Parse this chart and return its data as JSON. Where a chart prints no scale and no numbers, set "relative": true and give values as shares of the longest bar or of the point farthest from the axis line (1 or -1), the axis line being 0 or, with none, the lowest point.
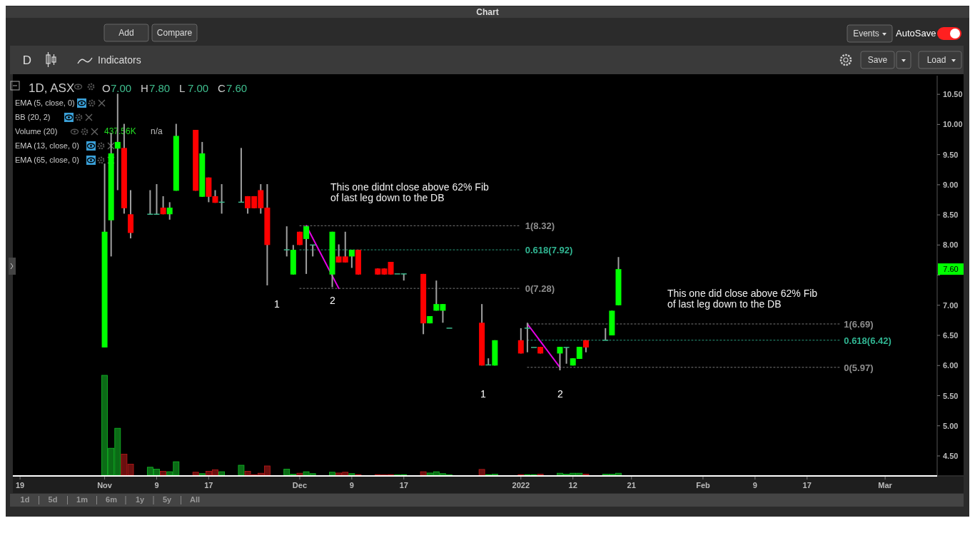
{
  "chart_data": [
    {
      "type": "candlestick",
      "title": "1D, ASX",
      "x": [
        "2021-11-01",
        "2021-11-02",
        "2021-11-03",
        "2021-11-04",
        "2021-11-05",
        "2021-11-08",
        "2021-11-09",
        "2021-11-10",
        "2021-11-11",
        "2021-11-12",
        "2021-11-15",
        "2021-11-16",
        "2021-11-17",
        "2021-11-18",
        "2021-11-19",
        "2021-11-22",
        "2021-11-23",
        "2021-11-24",
        "2021-11-25",
        "2021-11-26",
        "2021-11-29",
        "2021-11-30",
        "2021-12-01",
        "2021-12-02",
        "2021-12-03",
        "2021-12-06",
        "2021-12-07",
        "2021-12-08",
        "2021-12-09",
        "2021-12-10",
        "2021-12-13",
        "2021-12-14",
        "2021-12-15",
        "2021-12-16",
        "2021-12-17",
        "2021-12-20",
        "2021-12-21",
        "2021-12-22",
        "2021-12-23",
        "2021-12-24",
        "2021-12-29",
        "2021-12-30",
        "2021-12-31",
        "2022-01-04",
        "2022-01-05",
        "2022-01-06",
        "2022-01-07",
        "2022-01-10",
        "2022-01-11",
        "2022-01-12",
        "2022-01-13",
        "2022-01-14",
        "2022-01-17",
        "2022-01-18",
        "2022-01-19"
      ],
      "ohlc": [
        [
          6.3,
          9.35,
          6.3,
          8.22
        ],
        [
          8.41,
          9.86,
          7.81,
          9.52
        ],
        [
          9.6,
          10.51,
          8.91,
          9.71
        ],
        [
          9.61,
          10.01,
          8.52,
          8.61
        ],
        [
          8.51,
          8.91,
          8.11,
          8.2
        ],
        [
          8.51,
          8.91,
          8.51,
          8.51
        ],
        [
          8.51,
          9.01,
          8.51,
          8.51
        ],
        [
          8.62,
          8.81,
          8.51,
          8.51
        ],
        [
          8.51,
          8.71,
          8.42,
          8.62
        ],
        [
          8.9,
          10.01,
          8.9,
          9.81
        ],
        [
          9.91,
          9.91,
          8.9,
          8.9
        ],
        [
          8.8,
          9.71,
          8.8,
          9.52
        ],
        [
          9.12,
          9.12,
          8.71,
          8.8
        ],
        [
          8.81,
          8.91,
          8.7,
          8.7
        ],
        [
          8.71,
          9.01,
          8.52,
          8.71
        ],
        [
          8.71,
          9.61,
          8.71,
          8.71
        ],
        [
          8.81,
          8.81,
          8.52,
          8.61
        ],
        [
          8.81,
          8.81,
          8.61,
          8.61
        ],
        [
          8.91,
          9.01,
          8.52,
          8.61
        ],
        [
          8.62,
          9.01,
          7.33,
          8.0
        ],
        [
          7.92,
          8.31,
          7.81,
          7.92
        ],
        [
          7.51,
          8.0,
          7.51,
          7.92
        ],
        [
          8.22,
          8.22,
          8.0,
          8.0
        ],
        [
          8.1,
          8.32,
          7.52,
          8.31
        ],
        [
          8.0,
          8.0,
          7.81,
          8.0
        ],
        [
          7.51,
          8.22,
          7.3,
          8.22
        ],
        [
          7.81,
          8.01,
          7.71,
          7.71
        ],
        [
          7.81,
          8.22,
          7.71,
          7.71
        ],
        [
          7.81,
          7.92,
          7.62,
          7.92
        ],
        [
          7.92,
          7.92,
          7.51,
          7.51
        ],
        [
          7.61,
          7.61,
          7.51,
          7.51
        ],
        [
          7.61,
          7.61,
          7.51,
          7.51
        ],
        [
          7.72,
          7.72,
          7.51,
          7.51
        ],
        [
          7.52,
          7.52,
          7.52,
          7.52
        ],
        [
          7.52,
          7.52,
          7.41,
          7.52
        ],
        [
          7.52,
          7.52,
          6.52,
          6.7
        ],
        [
          6.7,
          6.82,
          6.7,
          6.82
        ],
        [
          6.91,
          7.41,
          6.91,
          7.02
        ],
        [
          6.91,
          7.02,
          6.71,
          7.02
        ],
        [
          6.62,
          6.62,
          6.62,
          6.62
        ],
        [
          6.71,
          7.02,
          6.0,
          6.0
        ],
        [
          6.01,
          6.12,
          6.01,
          6.01
        ],
        [
          6.0,
          6.42,
          6.0,
          6.42
        ],
        [
          6.42,
          6.62,
          6.2,
          6.2
        ],
        [
          6.62,
          6.71,
          6.22,
          6.62
        ],
        [
          6.3,
          6.3,
          6.3,
          6.3
        ],
        [
          6.31,
          6.31,
          6.2,
          6.2
        ],
        [
          6.2,
          6.31,
          5.92,
          6.31
        ],
        [
          6.3,
          6.3,
          6.03,
          6.3
        ],
        [
          6.0,
          6.12,
          6.0,
          6.12
        ],
        [
          6.11,
          6.31,
          6.11,
          6.31
        ],
        [
          6.42,
          6.42,
          6.22,
          6.3
        ],
        [
          6.42,
          6.62,
          6.42,
          6.42
        ],
        [
          6.5,
          6.91,
          6.5,
          6.91
        ],
        [
          7.0,
          7.8,
          7.0,
          7.6
        ]
      ],
      "colors": [
        "#00ff00",
        "#00ff00",
        "#00ff00",
        "#ff0000",
        "#ff0000",
        "#3dbb8e",
        "#3dbb8e",
        "#ff0000",
        "#00ff00",
        "#00ff00",
        "#ff0000",
        "#00ff00",
        "#ff0000",
        "#ff0000",
        "#3dbb8e",
        "#3dbb8e",
        "#ff0000",
        "#ff0000",
        "#ff0000",
        "#ff0000",
        "#3dbb8e",
        "#00ff00",
        "#ff0000",
        "#00ff00",
        "#3dbb8e",
        "#00ff00",
        "#ff0000",
        "#ff0000",
        "#00ff00",
        "#ff0000",
        "#ff0000",
        "#ff0000",
        "#ff0000",
        "#3dbb8e",
        "#3dbb8e",
        "#ff0000",
        "#00ff00",
        "#00ff00",
        "#00ff00",
        "#3dbb8e",
        "#ff0000",
        "#3dbb8e",
        "#00ff00",
        "#ff0000",
        "#3dbb8e",
        "#3dbb8e",
        "#ff0000",
        "#00ff00",
        "#3dbb8e",
        "#00ff00",
        "#00ff00",
        "#ff0000",
        "#3dbb8e",
        "#00ff00",
        "#00ff00"
      ],
      "series": [
        {
          "type": "line",
          "name": "1(8.32)",
          "color": "#7a7a7a",
          "line_style": "dotted",
          "x": [
            "2021-12-01",
            "2022-01-04"
          ],
          "values": [
            8.32,
            8.32
          ]
        },
        {
          "type": "line",
          "name": "0.618(7.92)",
          "color": "#2a9d7f",
          "line_style": "dotted",
          "x": [
            "2021-12-01",
            "2022-01-04"
          ],
          "values": [
            7.92,
            7.92
          ]
        },
        {
          "type": "line",
          "name": "0(7.28)",
          "color": "#7a7a7a",
          "line_style": "dotted",
          "x": [
            "2021-12-01",
            "2022-01-04"
          ],
          "values": [
            7.28,
            7.28
          ]
        },
        {
          "type": "line",
          "name": "1(6.69)",
          "color": "#7a7a7a",
          "line_style": "dotted",
          "x": [
            "2022-01-05",
            "2022-02-22"
          ],
          "values": [
            6.69,
            6.69
          ]
        },
        {
          "type": "line",
          "name": "0.618(6.42)",
          "color": "#2a9d7f",
          "line_style": "dotted",
          "x": [
            "2022-01-05",
            "2022-02-22"
          ],
          "values": [
            6.42,
            6.42
          ]
        },
        {
          "type": "line",
          "name": "0(5.97)",
          "color": "#7a7a7a",
          "line_style": "dotted",
          "x": [
            "2022-01-05",
            "2022-02-22"
          ],
          "values": [
            5.97,
            5.97
          ]
        },
        {
          "type": "line",
          "color": "#e600e6",
          "line_style": "solid",
          "x": [
            "2021-12-02",
            "2021-12-07"
          ],
          "values": [
            8.32,
            7.28
          ]
        },
        {
          "type": "line",
          "color": "#e600e6",
          "line_style": "solid",
          "x": [
            "2022-01-05",
            "2022-01-10"
          ],
          "values": [
            6.69,
            5.97
          ]
        }
      ],
      "xlim": [
        "2021-10-18",
        "2022-03-09"
      ],
      "xticks": [
        {
          "value": "2021-10-19",
          "label": "19"
        },
        {
          "value": "2021-11-01",
          "label": "Nov"
        },
        {
          "value": "2021-11-09",
          "label": "9"
        },
        {
          "value": "2021-11-17",
          "label": "17"
        },
        {
          "value": "2021-12-01",
          "label": "Dec"
        },
        {
          "value": "2021-12-09",
          "label": "9"
        },
        {
          "value": "2021-12-17",
          "label": "17"
        },
        {
          "value": "2022-01-04",
          "label": "2022"
        },
        {
          "value": "2022-01-12",
          "label": "12"
        },
        {
          "value": "2022-01-21",
          "label": "21"
        },
        {
          "value": "2022-02-01",
          "label": "Feb"
        },
        {
          "value": "2022-02-09",
          "label": "9"
        },
        {
          "value": "2022-02-17",
          "label": "17"
        },
        {
          "value": "2022-03-01",
          "label": "Mar"
        }
      ],
      "ylim": [
        4.18,
        10.81
      ],
      "yticks": [
        {
          "value": 4.5,
          "label": "4.50"
        },
        {
          "value": 5,
          "label": "5.00"
        },
        {
          "value": 5.5,
          "label": "5.50"
        },
        {
          "value": 6,
          "label": "6.00"
        },
        {
          "value": 6.5,
          "label": "6.50"
        },
        {
          "value": 7,
          "label": "7.00"
        },
        {
          "value": 7.5,
          "label": null
        },
        {
          "value": 8,
          "label": "8.00"
        },
        {
          "value": 8.5,
          "label": "8.50"
        },
        {
          "value": 9,
          "label": "9.00"
        },
        {
          "value": 9.5,
          "label": "9.50"
        },
        {
          "value": 10,
          "label": "10.00"
        },
        {
          "value": 10.5,
          "label": "10.50"
        }
      ],
      "annotations": [
        "This one didnt close above 62% Fib\nof last leg down to the DB",
        "This one did close above 62% Fib\nof last leg down to the DB",
        "EMA (5, close, 0)",
        "BB (20, 2)",
        "Volume (20)",
        "437.56K",
        "n/a",
        "EMA (13, close, 0)",
        "EMA (65, close, 0)",
        "Chart",
        "Add",
        "Compare",
        "Events",
        "AutoSave",
        "D",
        "Indicators",
        "Save",
        "Load",
        "1d",
        "5d",
        "1m",
        "6m",
        "1y",
        "5y",
        "All",
        "1",
        "2",
        "1",
        "2",
        "O",
        "7.00",
        "H",
        "7.80",
        "L",
        "7.00",
        "C",
        "7.60",
        "7.60"
      ]
    },
    {
      "type": "bar",
      "relative": true,
      "tick_labels": false,
      "xlim": [
        "2021-10-18",
        "2022-03-09"
      ],
      "x": [
        "2021-11-01",
        "2021-11-02",
        "2021-11-03",
        "2021-11-04",
        "2021-11-05",
        "2021-11-08",
        "2021-11-09",
        "2021-11-10",
        "2021-11-11",
        "2021-11-12",
        "2021-11-15",
        "2021-11-16",
        "2021-11-17",
        "2021-11-18",
        "2021-11-19",
        "2021-11-22",
        "2021-11-23",
        "2021-11-24",
        "2021-11-25",
        "2021-11-26",
        "2021-11-29",
        "2021-11-30",
        "2021-12-01",
        "2021-12-02",
        "2021-12-03",
        "2021-12-06",
        "2021-12-07",
        "2021-12-08",
        "2021-12-09",
        "2021-12-10",
        "2021-12-13",
        "2021-12-14",
        "2021-12-15",
        "2021-12-16",
        "2021-12-17",
        "2021-12-20",
        "2021-12-21",
        "2021-12-22",
        "2021-12-23",
        "2021-12-24",
        "2021-12-29",
        "2021-12-30",
        "2021-12-31",
        "2022-01-04",
        "2022-01-05",
        "2022-01-06",
        "2022-01-07",
        "2022-01-10",
        "2022-01-11",
        "2022-01-12",
        "2022-01-13",
        "2022-01-14",
        "2022-01-17",
        "2022-01-18",
        "2022-01-19"
      ],
      "values": [
        1,
        0.27,
        0.47,
        0.21,
        0.11,
        0.08,
        0.06,
        0.04,
        0.035,
        0.135,
        0.03,
        0.016,
        0.04,
        0.055,
        0.035,
        0.1,
        0.04,
        0.003,
        0.02,
        0.093,
        0.06,
        0.01,
        0.02,
        0.035,
        0.016,
        0.03,
        0.022,
        0.03,
        0.016,
        0.006,
        0.006,
        0.003,
        0.006,
        0.003,
        0.006,
        0.035,
        0.022,
        0.035,
        0.016,
        0.003,
        0.058,
        0.006,
        0.01,
        0.006,
        0.006,
        0.006,
        0.01,
        0.02,
        0.01,
        0.02,
        0.02,
        0.01,
        0.01,
        0.01,
        0.02
      ],
      "colors": [
        "#0b6b16",
        "#0b6b16",
        "#0b6b16",
        "#6b0f0f",
        "#6b0f0f",
        "#0b6b16",
        "#0b6b16",
        "#6b0f0f",
        "#0b6b16",
        "#0b6b16",
        "#6b0f0f",
        "#0b6b16",
        "#6b0f0f",
        "#6b0f0f",
        "#0b6b16",
        "#0b6b16",
        "#6b0f0f",
        "#6b0f0f",
        "#6b0f0f",
        "#6b0f0f",
        "#0b6b16",
        "#0b6b16",
        "#6b0f0f",
        "#0b6b16",
        "#0b6b16",
        "#0b6b16",
        "#6b0f0f",
        "#6b0f0f",
        "#0b6b16",
        "#6b0f0f",
        "#6b0f0f",
        "#6b0f0f",
        "#6b0f0f",
        "#0b6b16",
        "#0b6b16",
        "#6b0f0f",
        "#0b6b16",
        "#0b6b16",
        "#0b6b16",
        "#0b6b16",
        "#6b0f0f",
        "#0b6b16",
        "#0b6b16",
        "#6b0f0f",
        "#0b6b16",
        "#0b6b16",
        "#6b0f0f",
        "#0b6b16",
        "#0b6b16",
        "#0b6b16",
        "#0b6b16",
        "#6b0f0f",
        "#0b6b16",
        "#0b6b16",
        "#0b6b16"
      ]
    }
  ]
}
